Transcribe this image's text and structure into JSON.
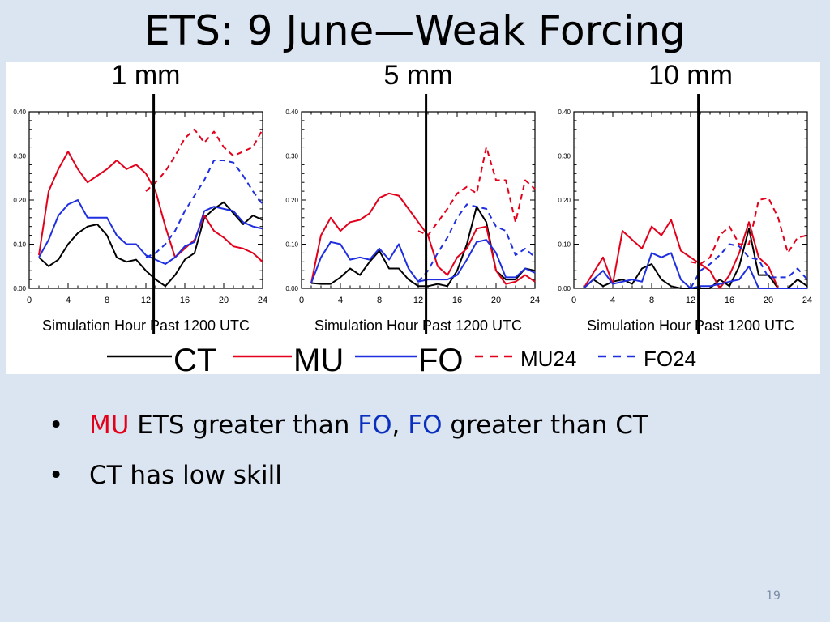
{
  "slide": {
    "title": "ETS:  9 June—Weak Forcing",
    "page_number": "19"
  },
  "bullets": [
    {
      "parts": [
        {
          "text": "MU",
          "color": "red"
        },
        {
          "text": " ETS greater than ",
          "color": "black"
        },
        {
          "text": "FO",
          "color": "blue"
        },
        {
          "text": ", ",
          "color": "black"
        },
        {
          "text": "FO",
          "color": "blue"
        },
        {
          "text": " greater than CT",
          "color": "black"
        }
      ]
    },
    {
      "parts": [
        {
          "text": "CT has low skill",
          "color": "black"
        }
      ]
    }
  ],
  "colors": {
    "red": "#e3001b",
    "blue": "#1f2fe0",
    "black": "#000000"
  },
  "chart_data": [
    {
      "type": "line",
      "title": "1 mm",
      "xlabel": "Simulation Hour Past 1200 UTC",
      "xlim": [
        0,
        24
      ],
      "ylim": [
        0,
        0.4
      ],
      "xticks": [
        "0",
        "4",
        "8",
        "12",
        "16",
        "20",
        "24"
      ],
      "yticks": [
        "0.00",
        "0.10",
        "0.20",
        "0.30",
        "0.40"
      ],
      "divider_x": 12.8,
      "series": [
        {
          "name": "CT",
          "color": "black",
          "dash": false,
          "x": [
            1,
            2,
            3,
            4,
            5,
            6,
            7,
            8,
            9,
            10,
            11,
            12,
            13,
            14,
            15,
            16,
            17,
            18,
            19,
            20,
            21,
            22,
            23,
            24
          ],
          "values": [
            0.07,
            0.05,
            0.065,
            0.1,
            0.125,
            0.14,
            0.145,
            0.12,
            0.07,
            0.06,
            0.065,
            0.04,
            0.02,
            0.005,
            0.03,
            0.065,
            0.08,
            0.16,
            0.18,
            0.195,
            0.17,
            0.145,
            0.165,
            0.155
          ]
        },
        {
          "name": "MU",
          "color": "red",
          "dash": false,
          "x": [
            1,
            2,
            3,
            4,
            5,
            6,
            7,
            8,
            9,
            10,
            11,
            12,
            13,
            14,
            15,
            16,
            17,
            18,
            19,
            20,
            21,
            22,
            23,
            24
          ],
          "values": [
            0.075,
            0.22,
            0.27,
            0.31,
            0.27,
            0.24,
            0.255,
            0.27,
            0.29,
            0.27,
            0.28,
            0.26,
            0.22,
            0.14,
            0.07,
            0.09,
            0.11,
            0.165,
            0.13,
            0.115,
            0.095,
            0.09,
            0.08,
            0.06
          ]
        },
        {
          "name": "FO",
          "color": "blue",
          "dash": false,
          "x": [
            1,
            2,
            3,
            4,
            5,
            6,
            7,
            8,
            9,
            10,
            11,
            12,
            13,
            14,
            15,
            16,
            17,
            18,
            19,
            20,
            21,
            22,
            23,
            24
          ],
          "values": [
            0.07,
            0.11,
            0.165,
            0.19,
            0.2,
            0.16,
            0.16,
            0.16,
            0.12,
            0.1,
            0.1,
            0.075,
            0.065,
            0.055,
            0.07,
            0.095,
            0.105,
            0.175,
            0.185,
            0.18,
            0.175,
            0.15,
            0.14,
            0.135
          ]
        },
        {
          "name": "MU24",
          "color": "red",
          "dash": true,
          "x": [
            12,
            13,
            14,
            15,
            16,
            17,
            18,
            19,
            20,
            21,
            22,
            23,
            24
          ],
          "values": [
            0.22,
            0.24,
            0.265,
            0.3,
            0.34,
            0.36,
            0.33,
            0.355,
            0.32,
            0.3,
            0.31,
            0.32,
            0.36
          ]
        },
        {
          "name": "FO24",
          "color": "blue",
          "dash": true,
          "x": [
            12,
            13,
            14,
            15,
            16,
            17,
            18,
            19,
            20,
            21,
            22,
            23,
            24
          ],
          "values": [
            0.07,
            0.08,
            0.1,
            0.13,
            0.175,
            0.21,
            0.245,
            0.29,
            0.29,
            0.285,
            0.255,
            0.22,
            0.19
          ]
        }
      ]
    },
    {
      "type": "line",
      "title": "5 mm",
      "xlabel": "Simulation Hour Past 1200 UTC",
      "xlim": [
        0,
        24
      ],
      "ylim": [
        0,
        0.4
      ],
      "xticks": [
        "0",
        "4",
        "8",
        "12",
        "16",
        "20",
        "24"
      ],
      "yticks": [
        "0.00",
        "0.10",
        "0.20",
        "0.30",
        "0.40"
      ],
      "divider_x": 12.8,
      "series": [
        {
          "name": "CT",
          "color": "black",
          "dash": false,
          "x": [
            1,
            2,
            3,
            4,
            5,
            6,
            7,
            8,
            9,
            10,
            11,
            12,
            13,
            14,
            15,
            16,
            17,
            18,
            19,
            20,
            21,
            22,
            23,
            24
          ],
          "values": [
            0.012,
            0.01,
            0.01,
            0.025,
            0.045,
            0.03,
            0.06,
            0.085,
            0.045,
            0.045,
            0.02,
            0.005,
            0.005,
            0.01,
            0.005,
            0.04,
            0.1,
            0.185,
            0.15,
            0.04,
            0.02,
            0.02,
            0.045,
            0.04
          ]
        },
        {
          "name": "MU",
          "color": "red",
          "dash": false,
          "x": [
            1,
            2,
            3,
            4,
            5,
            6,
            7,
            8,
            9,
            10,
            11,
            12,
            13,
            14,
            15,
            16,
            17,
            18,
            19,
            20,
            21,
            22,
            23,
            24
          ],
          "values": [
            0.012,
            0.12,
            0.16,
            0.13,
            0.15,
            0.155,
            0.17,
            0.205,
            0.215,
            0.21,
            0.18,
            0.15,
            0.12,
            0.05,
            0.03,
            0.07,
            0.09,
            0.135,
            0.14,
            0.04,
            0.01,
            0.015,
            0.03,
            0.015
          ]
        },
        {
          "name": "FO",
          "color": "blue",
          "dash": false,
          "x": [
            1,
            2,
            3,
            4,
            5,
            6,
            7,
            8,
            9,
            10,
            11,
            12,
            13,
            14,
            15,
            16,
            17,
            18,
            19,
            20,
            21,
            22,
            23,
            24
          ],
          "values": [
            0.012,
            0.07,
            0.105,
            0.1,
            0.065,
            0.07,
            0.065,
            0.09,
            0.065,
            0.1,
            0.045,
            0.015,
            0.02,
            0.02,
            0.02,
            0.03,
            0.065,
            0.105,
            0.11,
            0.08,
            0.025,
            0.025,
            0.045,
            0.035
          ]
        },
        {
          "name": "MU24",
          "color": "red",
          "dash": true,
          "x": [
            12,
            13,
            14,
            15,
            16,
            17,
            18,
            19,
            20,
            21,
            22,
            23,
            24
          ],
          "values": [
            0.13,
            0.12,
            0.15,
            0.18,
            0.215,
            0.23,
            0.215,
            0.32,
            0.245,
            0.245,
            0.15,
            0.245,
            0.225
          ]
        },
        {
          "name": "FO24",
          "color": "blue",
          "dash": true,
          "x": [
            12,
            13,
            14,
            15,
            16,
            17,
            18,
            19,
            20,
            21,
            22,
            23,
            24
          ],
          "values": [
            0.015,
            0.04,
            0.08,
            0.115,
            0.16,
            0.19,
            0.185,
            0.18,
            0.14,
            0.13,
            0.075,
            0.09,
            0.07
          ]
        }
      ]
    },
    {
      "type": "line",
      "title": "10 mm",
      "xlabel": "Simulation Hour Past 1200 UTC",
      "xlim": [
        0,
        24
      ],
      "ylim": [
        0,
        0.4
      ],
      "xticks": [
        "0",
        "4",
        "8",
        "12",
        "16",
        "20",
        "24"
      ],
      "yticks": [
        "0.00",
        "0.10",
        "0.20",
        "0.30",
        "0.40"
      ],
      "divider_x": 12.8,
      "series": [
        {
          "name": "CT",
          "color": "black",
          "dash": false,
          "x": [
            1,
            2,
            3,
            4,
            5,
            6,
            7,
            8,
            9,
            10,
            11,
            12,
            13,
            14,
            15,
            16,
            17,
            18,
            19,
            20,
            21,
            22,
            23,
            24
          ],
          "values": [
            0.0,
            0.02,
            0.005,
            0.015,
            0.02,
            0.01,
            0.045,
            0.055,
            0.02,
            0.005,
            0.0,
            0.0,
            0.0,
            0.0,
            0.02,
            0.005,
            0.05,
            0.135,
            0.03,
            0.03,
            0.0,
            0.0,
            0.02,
            0.005
          ]
        },
        {
          "name": "MU",
          "color": "red",
          "dash": false,
          "x": [
            1,
            2,
            3,
            4,
            5,
            6,
            7,
            8,
            9,
            10,
            11,
            12,
            13,
            14,
            15,
            16,
            17,
            18,
            19,
            20,
            21,
            22,
            23,
            24
          ],
          "values": [
            0.0,
            0.035,
            0.07,
            0.01,
            0.13,
            0.11,
            0.09,
            0.14,
            0.12,
            0.155,
            0.085,
            0.07,
            0.055,
            0.04,
            0.0,
            0.03,
            0.08,
            0.15,
            0.07,
            0.05,
            0.0,
            0.0,
            0.0,
            0.0
          ]
        },
        {
          "name": "FO",
          "color": "blue",
          "dash": false,
          "x": [
            1,
            2,
            3,
            4,
            5,
            6,
            7,
            8,
            9,
            10,
            11,
            12,
            13,
            14,
            15,
            16,
            17,
            18,
            19,
            20,
            21,
            22,
            23,
            24
          ],
          "values": [
            0.0,
            0.02,
            0.04,
            0.01,
            0.015,
            0.02,
            0.015,
            0.08,
            0.07,
            0.08,
            0.02,
            0.0,
            0.005,
            0.005,
            0.01,
            0.015,
            0.02,
            0.05,
            0.0,
            0.0,
            0.0,
            0.0,
            0.0,
            0.0
          ]
        },
        {
          "name": "MU24",
          "color": "red",
          "dash": true,
          "x": [
            12,
            13,
            14,
            15,
            16,
            17,
            18,
            19,
            20,
            21,
            22,
            23,
            24
          ],
          "values": [
            0.06,
            0.055,
            0.07,
            0.12,
            0.14,
            0.1,
            0.1,
            0.2,
            0.205,
            0.16,
            0.08,
            0.115,
            0.12
          ]
        },
        {
          "name": "FO24",
          "color": "blue",
          "dash": true,
          "x": [
            12,
            13,
            14,
            15,
            16,
            17,
            18,
            19,
            20,
            21,
            22,
            23,
            24
          ],
          "values": [
            0.0,
            0.04,
            0.055,
            0.075,
            0.1,
            0.095,
            0.07,
            0.065,
            0.025,
            0.025,
            0.025,
            0.045,
            0.02
          ]
        }
      ]
    }
  ],
  "legend": [
    {
      "label": "CT",
      "color": "black",
      "dash": false,
      "size": "large"
    },
    {
      "label": "MU",
      "color": "red",
      "dash": false,
      "size": "large"
    },
    {
      "label": "FO",
      "color": "blue",
      "dash": false,
      "size": "large"
    },
    {
      "label": "MU24",
      "color": "red",
      "dash": true,
      "size": "small"
    },
    {
      "label": "FO24",
      "color": "blue",
      "dash": true,
      "size": "small"
    }
  ]
}
